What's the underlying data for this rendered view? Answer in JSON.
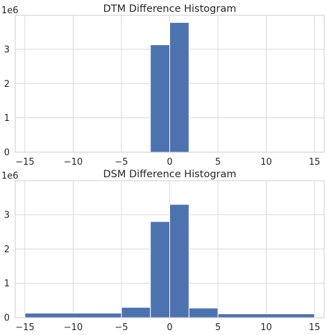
{
  "chart_data": [
    {
      "type": "bar",
      "title": "DTM Difference Histogram",
      "xlabel": "",
      "ylabel": "",
      "y_offset_label": "1e6",
      "xlim": [
        -16,
        16
      ],
      "ylim": [
        0,
        3.99
      ],
      "xticks": [
        -15,
        -10,
        -5,
        0,
        5,
        10,
        15
      ],
      "xtick_labels": [
        "−15",
        "−10",
        "−5",
        "0",
        "5",
        "10",
        "15"
      ],
      "yticks": [
        0,
        1,
        2,
        3
      ],
      "ytick_labels": [
        "0",
        "1",
        "2",
        "3"
      ],
      "grid": true,
      "bins": [
        {
          "x0": -2,
          "x1": 0,
          "value": 3.13
        },
        {
          "x0": 0,
          "x1": 2,
          "value": 3.78
        }
      ],
      "color": "#4c72b0"
    },
    {
      "type": "bar",
      "title": "DSM Difference Histogram",
      "xlabel": "",
      "ylabel": "",
      "y_offset_label": "1e6",
      "xlim": [
        -16,
        16
      ],
      "ylim": [
        0,
        3.99
      ],
      "xticks": [
        -15,
        -10,
        -5,
        0,
        5,
        10,
        15
      ],
      "xtick_labels": [
        "−15",
        "−10",
        "−5",
        "0",
        "5",
        "10",
        "15"
      ],
      "yticks": [
        0,
        1,
        2,
        3
      ],
      "ytick_labels": [
        "0",
        "1",
        "2",
        "3"
      ],
      "grid": true,
      "bins": [
        {
          "x0": -15,
          "x1": -5,
          "value": 0.13
        },
        {
          "x0": -5,
          "x1": -2,
          "value": 0.3
        },
        {
          "x0": -2,
          "x1": 0,
          "value": 2.8
        },
        {
          "x0": 0,
          "x1": 2,
          "value": 3.3
        },
        {
          "x0": 2,
          "x1": 5,
          "value": 0.28
        },
        {
          "x0": 5,
          "x1": 15,
          "value": 0.11
        }
      ],
      "color": "#4c72b0"
    }
  ]
}
